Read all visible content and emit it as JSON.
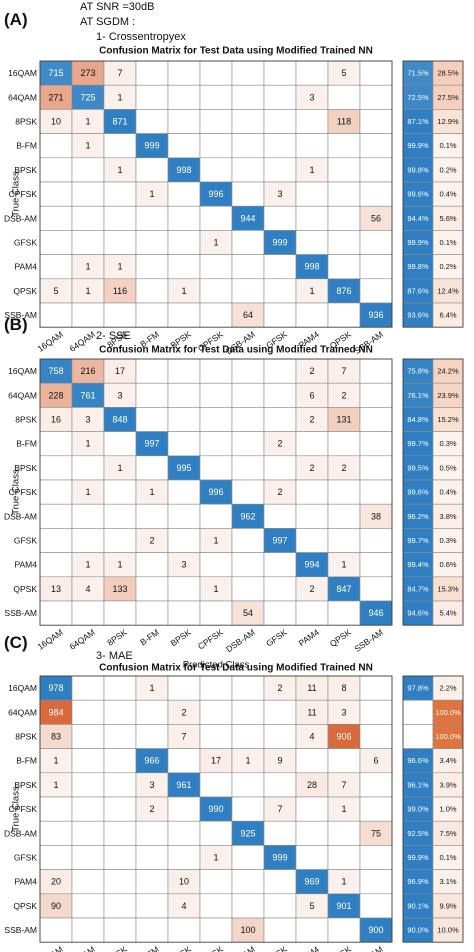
{
  "header": {
    "line1": "AT SNR =30dB",
    "line2": "AT SGDM :"
  },
  "classes": [
    "16QAM",
    "64QAM",
    "8PSK",
    "B-FM",
    "BPSK",
    "CPFSK",
    "DSB-AM",
    "GFSK",
    "PAM4",
    "QPSK",
    "SSB-AM"
  ],
  "colors": {
    "diag": "#2f7fc2",
    "offlight": "#f7e3d8",
    "offstrong": "#d96a3c",
    "pos": "#2f7fc2",
    "neg_light": "#fbe7dd",
    "neg_strong": "#e0743f"
  },
  "chart_data": [
    {
      "type": "heatmap",
      "panel_label": "(A)",
      "loss_label": "1-   Crossentropyex",
      "title": "Confusion Matrix for Test Data using Modified Trained NN",
      "xlabel": "Predicted Class",
      "ylabel": "True Class",
      "row_summary_pos": [
        "71.5%",
        "72.5%",
        "87.1%",
        "99.9%",
        "99.8%",
        "99.6%",
        "94.4%",
        "99.9%",
        "99.8%",
        "87.6%",
        "93.6%"
      ],
      "row_summary_neg": [
        "28.5%",
        "27.5%",
        "12.9%",
        "0.1%",
        "0.2%",
        "0.4%",
        "5.6%",
        "0.1%",
        "0.2%",
        "12.4%",
        "6.4%"
      ],
      "matrix": [
        [
          715,
          273,
          7,
          0,
          0,
          0,
          0,
          0,
          0,
          5,
          0
        ],
        [
          271,
          725,
          1,
          0,
          0,
          0,
          0,
          0,
          3,
          0,
          0
        ],
        [
          10,
          1,
          871,
          0,
          0,
          0,
          0,
          0,
          0,
          118,
          0
        ],
        [
          0,
          1,
          0,
          999,
          0,
          0,
          0,
          0,
          0,
          0,
          0
        ],
        [
          0,
          0,
          1,
          0,
          998,
          0,
          0,
          0,
          1,
          0,
          0
        ],
        [
          0,
          0,
          0,
          1,
          0,
          996,
          0,
          3,
          0,
          0,
          0
        ],
        [
          0,
          0,
          0,
          0,
          0,
          0,
          944,
          0,
          0,
          0,
          56
        ],
        [
          0,
          0,
          0,
          0,
          0,
          1,
          0,
          999,
          0,
          0,
          0
        ],
        [
          0,
          1,
          1,
          0,
          0,
          0,
          0,
          0,
          998,
          0,
          0
        ],
        [
          5,
          1,
          116,
          0,
          1,
          0,
          0,
          0,
          1,
          876,
          0
        ],
        [
          0,
          0,
          0,
          0,
          0,
          0,
          64,
          0,
          0,
          0,
          936
        ]
      ]
    },
    {
      "type": "heatmap",
      "panel_label": "(B)",
      "loss_label": "2-   SSE",
      "title": "Confusion Matrix for Test Data using Modified Trained NN",
      "xlabel": "Predicted Class",
      "ylabel": "True Class",
      "row_summary_pos": [
        "75.8%",
        "76.1%",
        "84.8%",
        "99.7%",
        "99.5%",
        "99.6%",
        "96.2%",
        "99.7%",
        "99.4%",
        "84.7%",
        "94.6%"
      ],
      "row_summary_neg": [
        "24.2%",
        "23.9%",
        "15.2%",
        "0.3%",
        "0.5%",
        "0.4%",
        "3.8%",
        "0.3%",
        "0.6%",
        "15.3%",
        "5.4%"
      ],
      "matrix": [
        [
          758,
          216,
          17,
          0,
          0,
          0,
          0,
          0,
          2,
          7,
          0
        ],
        [
          228,
          761,
          3,
          0,
          0,
          0,
          0,
          0,
          6,
          2,
          0
        ],
        [
          16,
          3,
          848,
          0,
          0,
          0,
          0,
          0,
          2,
          131,
          0
        ],
        [
          0,
          1,
          0,
          997,
          0,
          0,
          0,
          2,
          0,
          0,
          0
        ],
        [
          0,
          0,
          1,
          0,
          995,
          0,
          0,
          0,
          2,
          2,
          0
        ],
        [
          0,
          1,
          0,
          1,
          0,
          996,
          0,
          2,
          0,
          0,
          0
        ],
        [
          0,
          0,
          0,
          0,
          0,
          0,
          962,
          0,
          0,
          0,
          38
        ],
        [
          0,
          0,
          0,
          2,
          0,
          1,
          0,
          997,
          0,
          0,
          0
        ],
        [
          0,
          1,
          1,
          0,
          3,
          0,
          0,
          0,
          994,
          1,
          0
        ],
        [
          13,
          4,
          133,
          0,
          0,
          1,
          0,
          0,
          2,
          847,
          0
        ],
        [
          0,
          0,
          0,
          0,
          0,
          0,
          54,
          0,
          0,
          0,
          946
        ]
      ]
    },
    {
      "type": "heatmap",
      "panel_label": "(C)",
      "loss_label": "3-   MAE",
      "title": "Confusion Matrix for Test Data using Modified Trained NN",
      "xlabel": "Predicted Class",
      "ylabel": "True Class",
      "row_summary_pos": [
        "97.8%",
        "",
        "",
        "96.6%",
        "96.1%",
        "99.0%",
        "92.5%",
        "99.9%",
        "96.9%",
        "90.1%",
        "90.0%"
      ],
      "row_summary_neg": [
        "2.2%",
        "100.0%",
        "100.0%",
        "3.4%",
        "3.9%",
        "1.0%",
        "7.5%",
        "0.1%",
        "3.1%",
        "9.9%",
        "10.0%"
      ],
      "matrix": [
        [
          978,
          0,
          0,
          1,
          0,
          0,
          0,
          2,
          11,
          8,
          0
        ],
        [
          984,
          0,
          0,
          0,
          2,
          0,
          0,
          0,
          11,
          3,
          0
        ],
        [
          83,
          0,
          0,
          0,
          7,
          0,
          0,
          0,
          4,
          906,
          0
        ],
        [
          1,
          0,
          0,
          966,
          0,
          17,
          1,
          9,
          0,
          0,
          6
        ],
        [
          1,
          0,
          0,
          3,
          961,
          0,
          0,
          0,
          28,
          7,
          0
        ],
        [
          0,
          0,
          0,
          2,
          0,
          990,
          0,
          7,
          0,
          1,
          0
        ],
        [
          0,
          0,
          0,
          0,
          0,
          0,
          925,
          0,
          0,
          0,
          75
        ],
        [
          0,
          0,
          0,
          0,
          0,
          1,
          0,
          999,
          0,
          0,
          0
        ],
        [
          20,
          0,
          0,
          0,
          10,
          0,
          0,
          0,
          969,
          1,
          0
        ],
        [
          90,
          0,
          0,
          0,
          4,
          0,
          0,
          0,
          5,
          901,
          0
        ],
        [
          0,
          0,
          0,
          0,
          0,
          0,
          100,
          0,
          0,
          0,
          900
        ]
      ]
    }
  ]
}
